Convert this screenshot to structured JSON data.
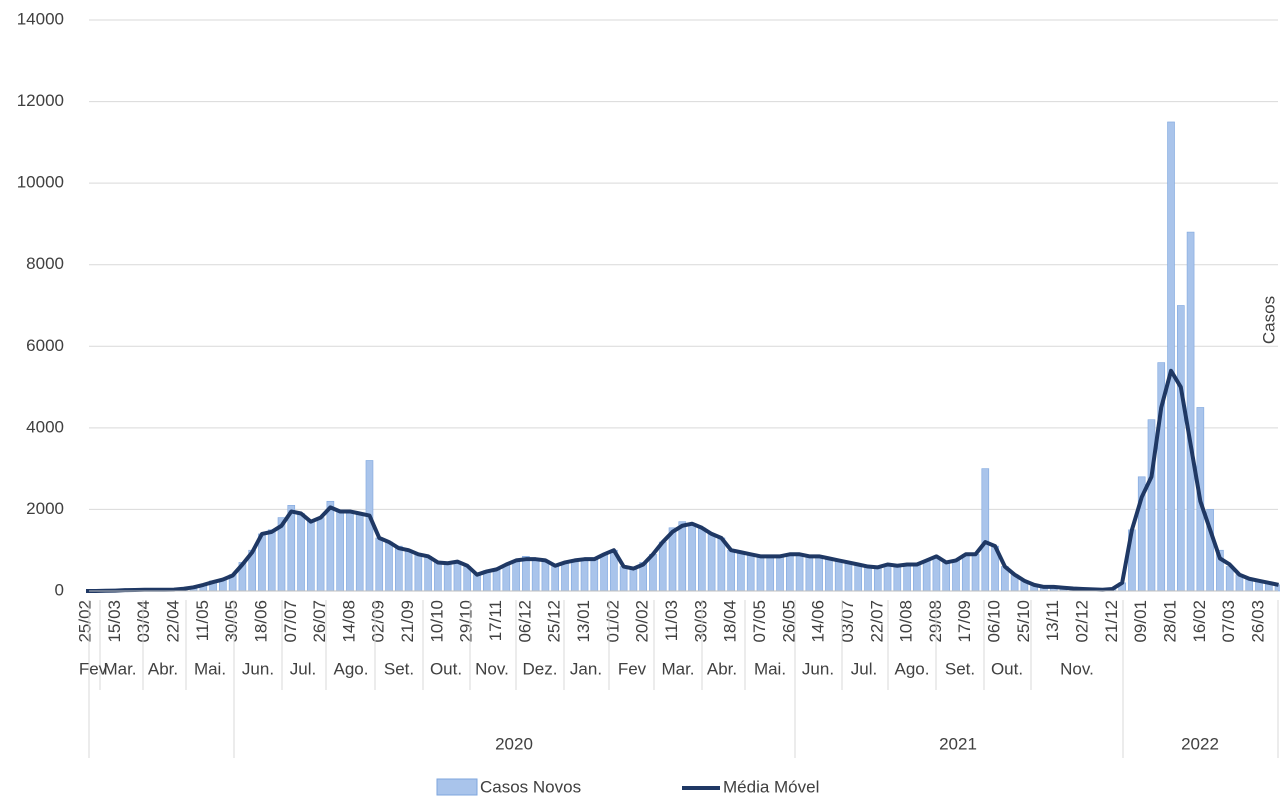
{
  "chart_data": {
    "type": "bar_line",
    "y_label": "Casos",
    "ylim": [
      0,
      14000
    ],
    "yticks": [
      0,
      2000,
      4000,
      6000,
      8000,
      10000,
      12000,
      14000
    ],
    "grid": true,
    "categories": [
      "25/02",
      null,
      null,
      "15/03",
      null,
      null,
      "03/04",
      null,
      null,
      "22/04",
      null,
      null,
      "11/05",
      null,
      null,
      "30/05",
      null,
      null,
      "18/06",
      null,
      null,
      "07/07",
      null,
      null,
      "26/07",
      null,
      null,
      "14/08",
      null,
      null,
      "02/09",
      null,
      null,
      "21/09",
      null,
      null,
      "10/10",
      null,
      null,
      "29/10",
      null,
      null,
      "17/11",
      null,
      null,
      "06/12",
      null,
      null,
      "25/12",
      null,
      null,
      "13/01",
      null,
      null,
      "01/02",
      null,
      null,
      "20/02",
      null,
      null,
      "11/03",
      null,
      null,
      "30/03",
      null,
      null,
      "18/04",
      null,
      null,
      "07/05",
      null,
      null,
      "26/05",
      null,
      null,
      "14/06",
      null,
      null,
      "03/07",
      null,
      null,
      "22/07",
      null,
      null,
      "10/08",
      null,
      null,
      "29/08",
      null,
      null,
      "17/09",
      null,
      null,
      "06/10",
      null,
      null,
      "25/10",
      null,
      null,
      "13/11",
      null,
      null,
      "02/12",
      null,
      null,
      "21/12",
      null,
      null,
      "09/01",
      null,
      null,
      "28/01",
      null,
      null,
      "16/02",
      null,
      null,
      "07/03",
      null,
      null,
      "26/03",
      null,
      null
    ],
    "month_labels": [
      "Fev",
      "Mar.",
      "Abr.",
      "Mai.",
      "Jun.",
      "Jul.",
      "Ago.",
      "Set.",
      "Out.",
      "Nov.",
      "Dez.",
      "Jan.",
      "Fev",
      "Mar.",
      "Abr.",
      "Mai.",
      "Jun.",
      "Jul.",
      "Ago.",
      "Set.",
      "Out.",
      "Nov."
    ],
    "year_labels": [
      "2020",
      "2021",
      "2022"
    ],
    "series": [
      {
        "name": "Casos Novos",
        "color": "#a9c4eb",
        "values": [
          0,
          0,
          5,
          10,
          20,
          30,
          30,
          30,
          30,
          40,
          60,
          100,
          150,
          250,
          300,
          400,
          700,
          1000,
          1400,
          1500,
          1800,
          2100,
          1900,
          1700,
          1800,
          2200,
          1950,
          1950,
          1900,
          3200,
          1300,
          1200,
          1100,
          1000,
          900,
          850,
          700,
          680,
          700,
          600,
          400,
          500,
          550,
          650,
          750,
          850,
          780,
          750,
          650,
          700,
          750,
          800,
          780,
          900,
          1000,
          600,
          550,
          700,
          900,
          1200,
          1550,
          1700,
          1650,
          1550,
          1400,
          1300,
          1000,
          950,
          900,
          850,
          850,
          850,
          900,
          900,
          850,
          850,
          800,
          750,
          700,
          650,
          600,
          600,
          650,
          600,
          650,
          650,
          750,
          850,
          700,
          750,
          900,
          900,
          3000,
          1100,
          600,
          400,
          250,
          150,
          100,
          100,
          80,
          60,
          50,
          40,
          30,
          50,
          200,
          1500,
          2800,
          4200,
          5600,
          11500,
          7000,
          8800,
          4500,
          2000,
          1000,
          600,
          400,
          300,
          250,
          200,
          150
        ]
      },
      {
        "name": "Média Móvel",
        "color": "#1f3864",
        "values": [
          0,
          0,
          5,
          10,
          20,
          25,
          30,
          30,
          30,
          35,
          55,
          90,
          150,
          220,
          280,
          380,
          650,
          950,
          1400,
          1450,
          1600,
          1950,
          1900,
          1700,
          1800,
          2050,
          1950,
          1950,
          1900,
          1850,
          1300,
          1200,
          1050,
          1000,
          900,
          850,
          700,
          680,
          720,
          620,
          400,
          480,
          530,
          650,
          750,
          780,
          780,
          750,
          620,
          700,
          750,
          780,
          780,
          900,
          1000,
          600,
          550,
          650,
          900,
          1200,
          1450,
          1600,
          1650,
          1550,
          1400,
          1300,
          1000,
          950,
          900,
          850,
          850,
          850,
          900,
          900,
          850,
          850,
          800,
          750,
          700,
          650,
          600,
          580,
          650,
          620,
          650,
          650,
          750,
          850,
          700,
          750,
          900,
          900,
          1200,
          1100,
          600,
          400,
          250,
          150,
          100,
          100,
          80,
          60,
          50,
          40,
          30,
          50,
          200,
          1500,
          2300,
          2800,
          4500,
          5400,
          5000,
          3600,
          2200,
          1500,
          800,
          650,
          400,
          300,
          250,
          200,
          150
        ]
      }
    ]
  }
}
